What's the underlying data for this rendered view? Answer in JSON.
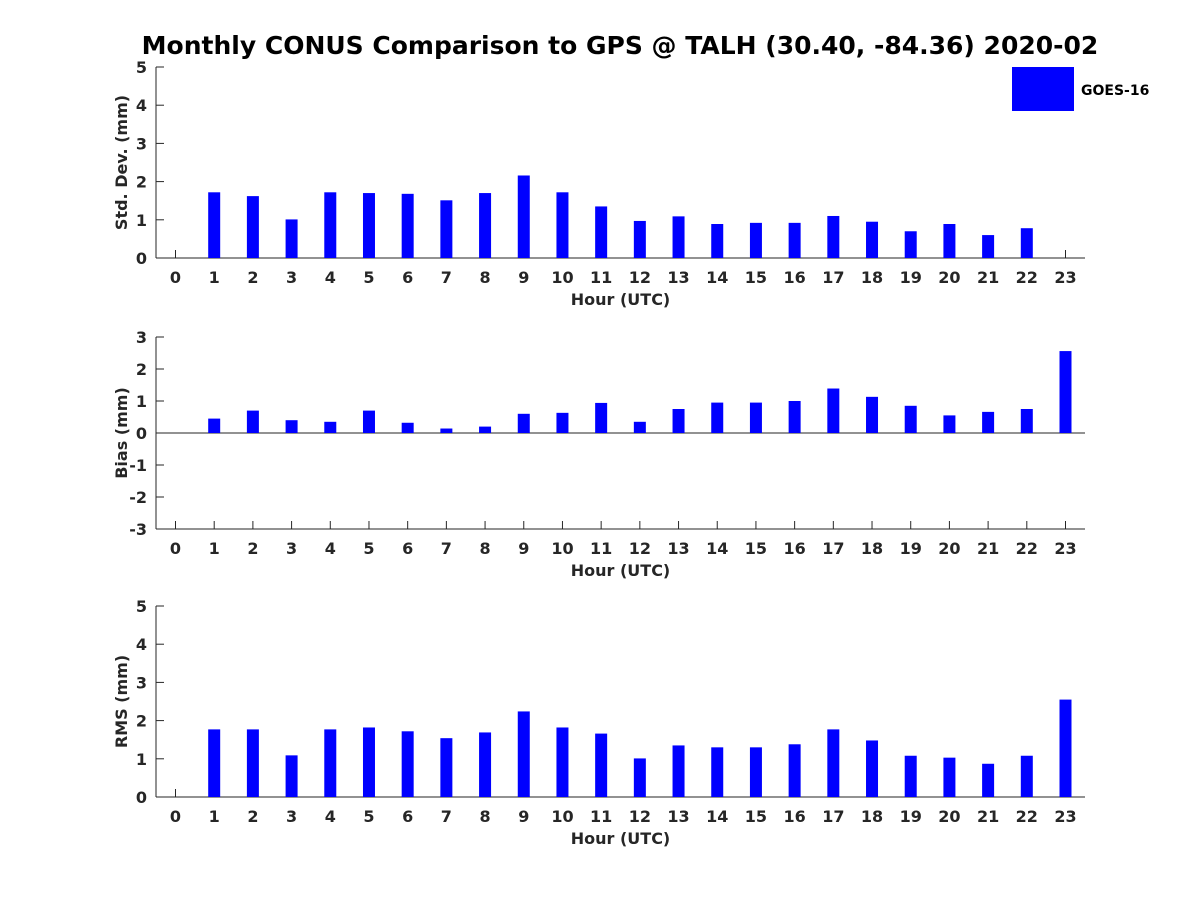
{
  "chart_data": {
    "title": "Monthly CONUS Comparison to GPS @ TALH (30.40, -84.36) 2020-02",
    "type": "bar",
    "legend": {
      "placement": "top-right",
      "entries": [
        "GOES-16"
      ]
    },
    "series_color": "#0000ff",
    "categories": [
      "0",
      "1",
      "2",
      "3",
      "4",
      "5",
      "6",
      "7",
      "8",
      "9",
      "10",
      "11",
      "12",
      "13",
      "14",
      "15",
      "16",
      "17",
      "18",
      "19",
      "20",
      "21",
      "22",
      "23"
    ],
    "panels": [
      {
        "type": "bar",
        "ylabel": "Std. Dev. (mm)",
        "xlabel": "Hour (UTC)",
        "ylim": [
          0,
          5
        ],
        "yticks": [
          "0",
          "1",
          "2",
          "3",
          "4",
          "5"
        ],
        "series": [
          {
            "name": "GOES-16",
            "values": [
              null,
              1.72,
              1.62,
              1.01,
              1.72,
              1.7,
              1.68,
              1.51,
              1.7,
              2.16,
              1.72,
              1.35,
              0.97,
              1.09,
              0.89,
              0.92,
              0.92,
              1.1,
              0.95,
              0.7,
              0.89,
              0.6,
              0.78,
              null
            ]
          }
        ],
        "grid": false
      },
      {
        "type": "bar",
        "ylabel": "Bias (mm)",
        "xlabel": "Hour (UTC)",
        "ylim": [
          -3,
          3
        ],
        "yticks": [
          "-3",
          "-2",
          "-1",
          "0",
          "1",
          "2",
          "3"
        ],
        "series": [
          {
            "name": "GOES-16",
            "values": [
              null,
              0.45,
              0.7,
              0.4,
              0.35,
              0.7,
              0.32,
              0.14,
              0.2,
              0.6,
              0.63,
              0.94,
              0.35,
              0.75,
              0.95,
              0.95,
              1.0,
              1.39,
              1.13,
              0.85,
              0.55,
              0.66,
              0.75,
              2.56
            ]
          }
        ],
        "grid": false
      },
      {
        "type": "bar",
        "ylabel": "RMS (mm)",
        "xlabel": "Hour (UTC)",
        "ylim": [
          0,
          5
        ],
        "yticks": [
          "0",
          "1",
          "2",
          "3",
          "4",
          "5"
        ],
        "series": [
          {
            "name": "GOES-16",
            "values": [
              null,
              1.77,
              1.77,
              1.09,
              1.77,
              1.82,
              1.72,
              1.54,
              1.69,
              2.24,
              1.82,
              1.66,
              1.01,
              1.35,
              1.3,
              1.3,
              1.38,
              1.77,
              1.48,
              1.08,
              1.03,
              0.87,
              1.08,
              2.55
            ]
          }
        ],
        "grid": false
      }
    ]
  }
}
